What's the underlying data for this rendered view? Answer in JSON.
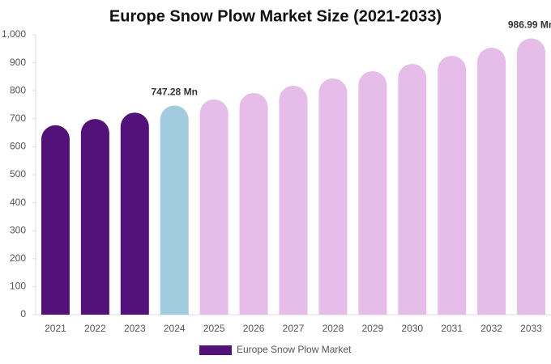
{
  "chart_data": {
    "type": "bar",
    "title": "Europe Snow Plow Market Size (2021-2033)",
    "categories": [
      "2021",
      "2022",
      "2023",
      "2024",
      "2025",
      "2026",
      "2027",
      "2028",
      "2029",
      "2030",
      "2031",
      "2032",
      "2033"
    ],
    "series": [
      {
        "name": "Europe Snow Plow Market",
        "color": "#52127a",
        "values": [
          677,
          699,
          722,
          747.28,
          769,
          792,
          818,
          844,
          870,
          896,
          925,
          954,
          986.99
        ],
        "value_labels": [
          null,
          null,
          null,
          "747.28 Mn",
          null,
          null,
          null,
          null,
          null,
          null,
          null,
          null,
          "986.99 Mn"
        ],
        "colors": [
          "#52127a",
          "#52127a",
          "#52127a",
          "#a3cbe0",
          "#e6bde9",
          "#e6bde9",
          "#e6bde9",
          "#e6bde9",
          "#e6bde9",
          "#e6bde9",
          "#e6bde9",
          "#e6bde9",
          "#e6bde9"
        ]
      }
    ],
    "ylim": [
      0,
      1000
    ],
    "yticks": [
      0,
      100,
      200,
      300,
      400,
      500,
      600,
      700,
      800,
      900,
      {
        "value": 1000,
        "label": "1,000"
      }
    ],
    "grid": false
  }
}
